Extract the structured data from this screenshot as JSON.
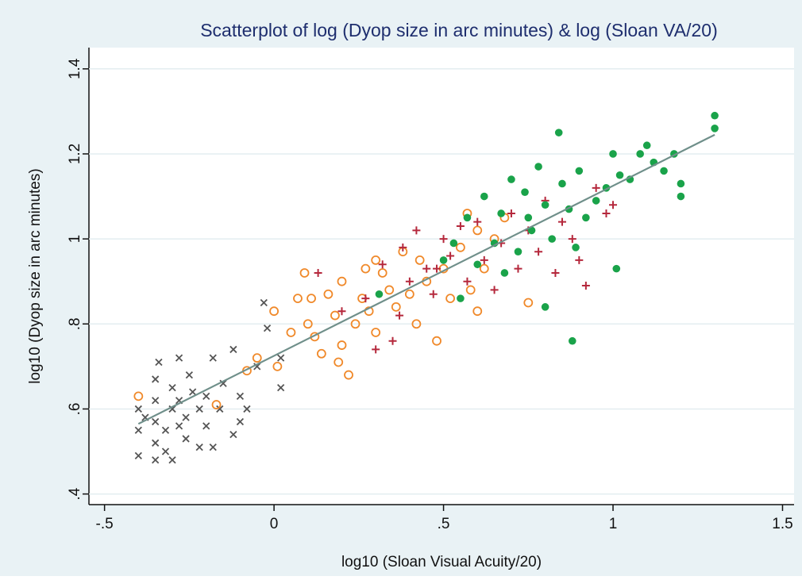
{
  "chart_data": {
    "type": "scatter",
    "title": "Scatterplot of log (Dyop size in arc minutes) & log (Sloan VA/20)",
    "x_label": "log10 (Sloan Visual Acuity/20)",
    "y_label": "log10 (Dyop size in arc minutes)",
    "xlim": [
      -0.546,
      1.534
    ],
    "ylim": [
      0.375,
      1.45
    ],
    "xticks": [
      {
        "value": -0.5,
        "label": "-.5"
      },
      0,
      {
        "value": 0.5,
        "label": ".5"
      },
      1,
      1.5
    ],
    "yticks": [
      {
        "value": 0.4,
        "label": ".4"
      },
      {
        "value": 0.6,
        "label": ".6"
      },
      {
        "value": 0.8,
        "label": ".8"
      },
      1,
      1.2,
      1.4
    ],
    "grid": true,
    "series": [
      {
        "marker": "x",
        "color": "#555555",
        "x": [
          -0.4,
          -0.4,
          -0.4,
          -0.38,
          -0.35,
          -0.35,
          -0.35,
          -0.35,
          -0.35,
          -0.32,
          -0.32,
          -0.3,
          -0.3,
          -0.3,
          -0.28,
          -0.28,
          -0.26,
          -0.26,
          -0.25,
          -0.24,
          -0.22,
          -0.22,
          -0.2,
          -0.2,
          -0.18,
          -0.18,
          -0.16,
          -0.15,
          -0.12,
          -0.1,
          -0.1,
          -0.08,
          -0.05,
          -0.03,
          -0.02,
          0.02,
          0.02,
          -0.12,
          -0.34,
          -0.28
        ],
        "values": [
          0.49,
          0.55,
          0.6,
          0.58,
          0.48,
          0.52,
          0.57,
          0.62,
          0.67,
          0.5,
          0.55,
          0.6,
          0.65,
          0.48,
          0.56,
          0.62,
          0.58,
          0.53,
          0.68,
          0.64,
          0.6,
          0.51,
          0.56,
          0.63,
          0.72,
          0.51,
          0.6,
          0.66,
          0.74,
          0.57,
          0.63,
          0.6,
          0.7,
          0.85,
          0.79,
          0.72,
          0.65,
          0.54,
          0.71,
          0.72
        ]
      },
      {
        "marker": "circle",
        "color": "#f0892a",
        "x": [
          -0.4,
          -0.17,
          -0.08,
          -0.05,
          0,
          0.01,
          0.05,
          0.07,
          0.09,
          0.1,
          0.12,
          0.14,
          0.16,
          0.18,
          0.2,
          0.2,
          0.22,
          0.24,
          0.26,
          0.28,
          0.3,
          0.3,
          0.32,
          0.34,
          0.36,
          0.38,
          0.4,
          0.42,
          0.45,
          0.48,
          0.5,
          0.52,
          0.55,
          0.58,
          0.6,
          0.6,
          0.62,
          0.65,
          0.68,
          0.75,
          0.57,
          0.43,
          0.27,
          0.19,
          0.11
        ],
        "values": [
          0.63,
          0.61,
          0.69,
          0.72,
          0.83,
          0.7,
          0.78,
          0.86,
          0.92,
          0.8,
          0.77,
          0.73,
          0.87,
          0.82,
          0.9,
          0.75,
          0.68,
          0.8,
          0.86,
          0.83,
          0.95,
          0.78,
          0.92,
          0.88,
          0.84,
          0.97,
          0.87,
          0.8,
          0.9,
          0.76,
          0.93,
          0.86,
          0.98,
          0.88,
          1.02,
          0.83,
          0.93,
          1.0,
          1.05,
          0.85,
          1.06,
          0.95,
          0.93,
          0.71,
          0.86
        ]
      },
      {
        "marker": "plus",
        "color": "#b5283c",
        "x": [
          0.13,
          0.2,
          0.27,
          0.3,
          0.32,
          0.35,
          0.38,
          0.4,
          0.42,
          0.45,
          0.47,
          0.5,
          0.52,
          0.55,
          0.57,
          0.6,
          0.62,
          0.65,
          0.67,
          0.7,
          0.72,
          0.75,
          0.78,
          0.8,
          0.83,
          0.85,
          0.88,
          0.9,
          0.92,
          0.95,
          0.98,
          1.0,
          0.48,
          0.37
        ],
        "values": [
          0.92,
          0.83,
          0.86,
          0.74,
          0.94,
          0.76,
          0.98,
          0.9,
          1.02,
          0.93,
          0.87,
          1.0,
          0.96,
          1.03,
          0.9,
          1.04,
          0.95,
          0.88,
          0.99,
          1.06,
          0.93,
          1.02,
          0.97,
          1.09,
          0.92,
          1.04,
          1.0,
          0.95,
          0.89,
          1.12,
          1.06,
          1.08,
          0.93,
          0.82
        ]
      },
      {
        "marker": "dot",
        "color": "#1aa34a",
        "x": [
          0.31,
          0.5,
          0.53,
          0.55,
          0.57,
          0.6,
          0.62,
          0.65,
          0.67,
          0.7,
          0.72,
          0.74,
          0.76,
          0.78,
          0.8,
          0.8,
          0.82,
          0.84,
          0.85,
          0.87,
          0.88,
          0.89,
          0.9,
          0.92,
          0.95,
          0.98,
          1.0,
          1.01,
          1.02,
          1.05,
          1.08,
          1.1,
          1.12,
          1.15,
          1.18,
          1.2,
          1.2,
          1.3,
          1.3,
          0.75,
          0.68
        ],
        "values": [
          0.87,
          0.95,
          0.99,
          0.86,
          1.05,
          0.94,
          1.1,
          0.99,
          1.06,
          1.14,
          0.97,
          1.11,
          1.02,
          1.17,
          0.84,
          1.08,
          1.0,
          1.25,
          1.13,
          1.07,
          0.76,
          0.98,
          1.16,
          1.05,
          1.09,
          1.12,
          1.2,
          0.93,
          1.15,
          1.14,
          1.2,
          1.22,
          1.18,
          1.16,
          1.2,
          1.13,
          1.1,
          1.29,
          1.26,
          1.05,
          0.92
        ]
      }
    ],
    "fit_line": {
      "color": "#6f8f8a",
      "x": [
        -0.4,
        1.3
      ],
      "values": [
        0.565,
        1.245
      ]
    }
  }
}
